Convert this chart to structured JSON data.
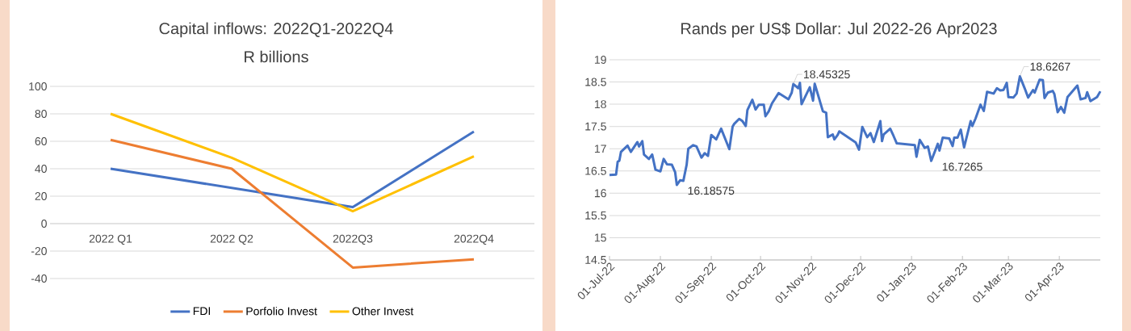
{
  "chart_data": [
    {
      "type": "line",
      "title": "Capital inflows: 2022Q1-2022Q4",
      "subtitle": "R billions",
      "categories": [
        "2022 Q1",
        "2022 Q2",
        "2022Q3",
        "2022Q4"
      ],
      "series": [
        {
          "name": "FDI",
          "color": "#4472c4",
          "values": [
            40,
            26,
            12,
            67
          ]
        },
        {
          "name": "Porfolio Invest",
          "color": "#ed7d31",
          "values": [
            61,
            40,
            -32,
            -26
          ]
        },
        {
          "name": "Other Invest",
          "color": "#ffc000",
          "values": [
            80,
            48,
            9,
            49
          ]
        }
      ],
      "ylim": [
        -40,
        100
      ],
      "yticks": [
        -40,
        -20,
        0,
        20,
        40,
        60,
        80,
        100
      ],
      "grid": "y",
      "legend": "bottom",
      "marker": "none"
    },
    {
      "type": "line",
      "title": "Rands per US$ Dollar: Jul 2022-26 Apr2023",
      "x": [
        "2022-07-01",
        "2022-07-05",
        "2022-07-06",
        "2022-07-07",
        "2022-07-08",
        "2022-07-12",
        "2022-07-14",
        "2022-07-18",
        "2022-07-19",
        "2022-07-21",
        "2022-07-22",
        "2022-07-25",
        "2022-07-27",
        "2022-07-29",
        "2022-08-01",
        "2022-08-03",
        "2022-08-05",
        "2022-08-08",
        "2022-08-10",
        "2022-08-11",
        "2022-08-13",
        "2022-08-15",
        "2022-08-17",
        "2022-08-18",
        "2022-08-21",
        "2022-08-23",
        "2022-08-26",
        "2022-08-28",
        "2022-08-30",
        "2022-09-01",
        "2022-09-04",
        "2022-09-07",
        "2022-09-12",
        "2022-09-14",
        "2022-09-15",
        "2022-09-18",
        "2022-09-20",
        "2022-09-22",
        "2022-09-23",
        "2022-09-26",
        "2022-09-28",
        "2022-09-30",
        "2022-10-03",
        "2022-10-04",
        "2022-10-06",
        "2022-10-08",
        "2022-10-12",
        "2022-10-18",
        "2022-10-20",
        "2022-10-21",
        "2022-10-24",
        "2022-10-25",
        "2022-10-26",
        "2022-10-31",
        "2022-11-02",
        "2022-11-03",
        "2022-11-08",
        "2022-11-10",
        "2022-11-11",
        "2022-11-14",
        "2022-11-15",
        "2022-11-17",
        "2022-11-18",
        "2022-11-28",
        "2022-11-30",
        "2022-12-02",
        "2022-12-05",
        "2022-12-07",
        "2022-12-09",
        "2022-12-13",
        "2022-12-14",
        "2022-12-15",
        "2022-12-19",
        "2022-12-21",
        "2022-12-23",
        "2023-01-03",
        "2023-01-04",
        "2023-01-06",
        "2023-01-09",
        "2023-01-11",
        "2023-01-13",
        "2023-01-17",
        "2023-01-18",
        "2023-01-20",
        "2023-01-24",
        "2023-01-26",
        "2023-01-27",
        "2023-01-29",
        "2023-01-31",
        "2023-02-02",
        "2023-02-06",
        "2023-02-07",
        "2023-02-09",
        "2023-02-12",
        "2023-02-14",
        "2023-02-16",
        "2023-02-20",
        "2023-02-22",
        "2023-02-24",
        "2023-02-26",
        "2023-02-28",
        "2023-03-01",
        "2023-03-04",
        "2023-03-06",
        "2023-03-08",
        "2023-03-11",
        "2023-03-13",
        "2023-03-16",
        "2023-03-17",
        "2023-03-20",
        "2023-03-22",
        "2023-03-23",
        "2023-03-25",
        "2023-03-28",
        "2023-03-29",
        "2023-03-31",
        "2023-04-02",
        "2023-04-04",
        "2023-04-06",
        "2023-04-12",
        "2023-04-14",
        "2023-04-17",
        "2023-04-18",
        "2023-04-20",
        "2023-04-24",
        "2023-04-26"
      ],
      "series": [
        {
          "color": "#4472c4",
          "values": [
            16.41,
            16.42,
            16.71,
            16.73,
            16.93,
            17.07,
            16.93,
            17.15,
            17.05,
            17.17,
            16.87,
            16.77,
            16.87,
            16.53,
            16.49,
            16.77,
            16.65,
            16.64,
            16.47,
            16.18575,
            16.29,
            16.28,
            16.64,
            17.0,
            17.08,
            17.05,
            16.8,
            16.9,
            16.84,
            17.31,
            17.21,
            17.45,
            16.99,
            17.5,
            17.56,
            17.67,
            17.62,
            17.51,
            17.87,
            18.1,
            17.88,
            17.99,
            17.99,
            17.73,
            17.84,
            18.02,
            18.25,
            18.11,
            18.26,
            18.45325,
            18.36,
            18.48,
            18.0,
            18.38,
            18.08,
            18.46,
            17.84,
            17.81,
            17.26,
            17.32,
            17.21,
            17.31,
            17.39,
            17.14,
            16.98,
            17.49,
            17.26,
            17.35,
            17.15,
            17.62,
            17.17,
            17.32,
            17.45,
            17.29,
            17.12,
            17.08,
            16.82,
            17.2,
            17.02,
            17.05,
            16.7265,
            17.11,
            16.96,
            17.25,
            17.23,
            17.06,
            17.25,
            17.25,
            17.43,
            17.03,
            17.62,
            17.51,
            17.68,
            17.99,
            17.85,
            18.28,
            18.24,
            18.36,
            18.31,
            18.32,
            18.48,
            18.16,
            18.15,
            18.24,
            18.6267,
            18.35,
            18.15,
            18.32,
            18.26,
            18.55,
            18.54,
            18.14,
            18.26,
            18.3,
            18.23,
            17.82,
            17.94,
            17.81,
            18.16,
            18.42,
            18.11,
            18.14,
            18.27,
            18.07,
            18.16,
            18.29
          ]
        }
      ],
      "xlim": [
        "2022-07-01",
        "2023-04-26"
      ],
      "xticks": [
        {
          "value": "2022-07-01",
          "label": "01-Jul-22"
        },
        {
          "value": "2022-08-01",
          "label": "01-Aug-22"
        },
        {
          "value": "2022-09-01",
          "label": "01-Sep-22"
        },
        {
          "value": "2022-10-01",
          "label": "01-Oct-22"
        },
        {
          "value": "2022-11-01",
          "label": "01-Nov-22"
        },
        {
          "value": "2022-12-01",
          "label": "01-Dec-22"
        },
        {
          "value": "2023-01-01",
          "label": "01-Jan-23"
        },
        {
          "value": "2023-02-01",
          "label": "01-Feb-23"
        },
        {
          "value": "2023-03-01",
          "label": "01-Mar-23"
        },
        {
          "value": "2023-04-01",
          "label": "01-Apr-23"
        }
      ],
      "ylim": [
        14.5,
        19
      ],
      "yticks": [
        14.5,
        15,
        15.5,
        16,
        16.5,
        17,
        17.5,
        18,
        18.5,
        19
      ],
      "grid": "y",
      "marker": "none",
      "annotations": [
        {
          "text": "16.18575",
          "x": "2022-08-11",
          "y": 16.18575
        },
        {
          "text": "18.45325",
          "x": "2022-10-21",
          "y": 18.45325
        },
        {
          "text": "16.7265",
          "x": "2023-01-13",
          "y": 16.7265
        },
        {
          "text": "18.6267",
          "x": "2023-03-08",
          "y": 18.6267
        }
      ]
    }
  ]
}
